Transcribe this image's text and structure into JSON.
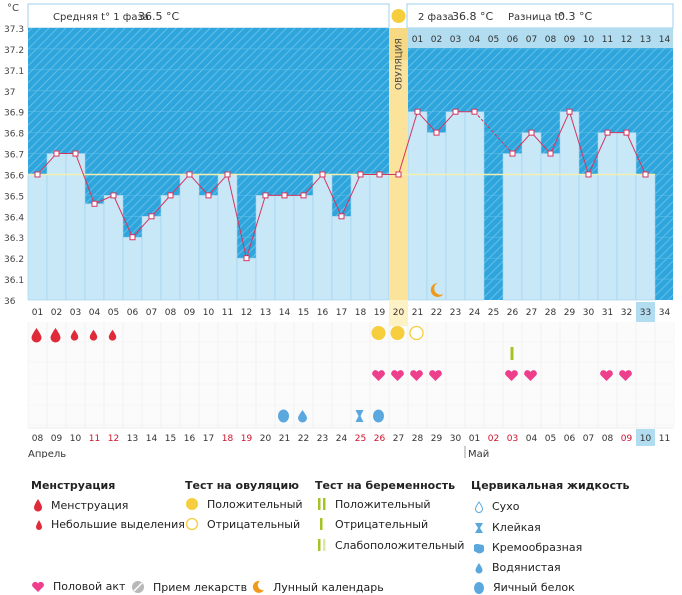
{
  "header": {
    "unit": "°C",
    "phase1_label": "Средняя t° 1 фаза",
    "phase1_value": "36.5 °C",
    "phase2_label": "2 фаза",
    "phase2_value": "36.8 °C",
    "diff_label": "Разница t°",
    "diff_value": "0.3 °C",
    "ovulation_label": "ОВУЛЯЦИЯ"
  },
  "chart_data": {
    "type": "line",
    "title": "",
    "ylabel": "°C",
    "ylim": [
      36.0,
      37.3
    ],
    "yticks": [
      "37.3",
      "37.2",
      "37.1",
      "37",
      "36.9",
      "36.8",
      "36.7",
      "36.6",
      "36.5",
      "36.4",
      "36.3",
      "36.2",
      "36.1",
      "36"
    ],
    "cycle_days": [
      "01",
      "02",
      "03",
      "04",
      "05",
      "06",
      "07",
      "08",
      "09",
      "10",
      "11",
      "12",
      "13",
      "14",
      "15",
      "16",
      "17",
      "18",
      "19",
      "20",
      "21",
      "22",
      "23",
      "24",
      "25",
      "26",
      "27",
      "28",
      "29",
      "30",
      "31",
      "32",
      "33",
      "34"
    ],
    "phase2_days": [
      "01",
      "02",
      "03",
      "04",
      "05",
      "06",
      "07",
      "08",
      "09",
      "10",
      "11",
      "12",
      "13",
      "14"
    ],
    "temperatures": [
      36.6,
      36.7,
      36.7,
      36.46,
      36.5,
      36.3,
      36.4,
      36.5,
      36.6,
      36.5,
      36.6,
      36.2,
      36.5,
      36.5,
      36.5,
      36.6,
      36.4,
      36.6,
      36.6,
      36.6,
      36.9,
      36.8,
      36.9,
      36.9,
      null,
      36.7,
      36.8,
      36.7,
      36.9,
      36.6,
      36.8,
      36.8,
      36.6,
      null
    ],
    "coverline": 36.6,
    "ovulation_day": 20,
    "current_day": 33,
    "dates": [
      "08",
      "09",
      "10",
      "11",
      "12",
      "13",
      "14",
      "15",
      "16",
      "17",
      "18",
      "19",
      "20",
      "21",
      "22",
      "23",
      "24",
      "25",
      "26",
      "27",
      "28",
      "29",
      "30",
      "01",
      "02",
      "03",
      "04",
      "05",
      "06",
      "07",
      "08",
      "09",
      "10",
      "11"
    ],
    "weekend_dates": [
      4,
      5,
      11,
      12,
      18,
      19,
      25,
      26,
      32
    ],
    "months": [
      "Апрель",
      "Май"
    ],
    "menstruation": [
      1,
      2,
      3,
      4,
      5
    ],
    "menstruation_large": [
      1,
      2
    ],
    "ovulation_test_positive": [
      19,
      20
    ],
    "ovulation_test_negative": [
      21
    ],
    "pregnancy_test_positive": [
      26
    ],
    "intercourse": [
      19,
      20,
      21,
      22,
      26,
      27,
      31,
      32
    ],
    "cervical_egg_white": [
      14,
      19
    ],
    "cervical_watery": [
      15
    ],
    "cervical_sticky": [
      18
    ],
    "moon_day": 22
  },
  "legend": {
    "menstruation": {
      "title": "Менструация",
      "items": [
        "Менструация",
        "Небольшие выделения"
      ]
    },
    "ovulation_test": {
      "title": "Тест на овуляцию",
      "items": [
        "Положительный",
        "Отрицательный"
      ]
    },
    "pregnancy_test": {
      "title": "Тест на беременность",
      "items": [
        "Положительный",
        "Отрицательный",
        "Слабоположительный"
      ]
    },
    "cervical": {
      "title": "Цервикальная жидкость",
      "items": [
        "Сухо",
        "Клейкая",
        "Кремообразная",
        "Водянистая",
        "Яичный белок"
      ]
    },
    "bottom": [
      "Половой акт",
      "Прием лекарств",
      "Лунный календарь"
    ]
  },
  "colors": {
    "sky": "#2ea6dd",
    "bar": "#c8e8f8",
    "bar_edge": "#9fd0ec",
    "line": "#d4355f",
    "ovulation": "#fbe39c",
    "coverline": "#f3efb0",
    "heart": "#ee3f8c",
    "drop": "#e02a3a",
    "cervical": "#5aa8de",
    "test": "#a4c424",
    "sun": "#f6cd3d",
    "moon": "#f19a1a",
    "highlight": "#b2dcf0"
  }
}
